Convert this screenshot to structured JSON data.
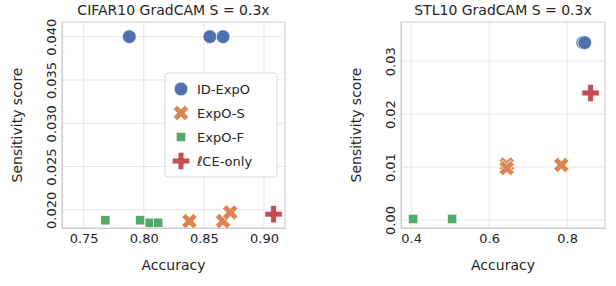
{
  "chart_data": [
    {
      "type": "scatter",
      "title": "CIFAR10 GradCAM S = 0.3x",
      "xlabel": "Accuracy",
      "ylabel": "Sensitivity score",
      "xlim": [
        0.732,
        0.9175
      ],
      "ylim": [
        0.0179,
        0.0417
      ],
      "xticks": [
        0.75,
        {
          "value": 0.8,
          "label": "0.80"
        },
        0.85,
        {
          "value": 0.9,
          "label": "0.90"
        }
      ],
      "yticks": [
        {
          "value": 0.02,
          "label": "0.020"
        },
        0.025,
        {
          "value": 0.03,
          "label": "0.030"
        },
        0.035,
        {
          "value": 0.04,
          "label": "0.040"
        }
      ],
      "grid": true,
      "legend": "center right",
      "series": [
        {
          "name": "ID-ExpO",
          "color": "#4c72b0",
          "marker": "circle",
          "x": [
            0.788,
            0.855,
            0.866
          ],
          "values": [
            0.04,
            0.04,
            0.04
          ]
        },
        {
          "name": "ExpO-S",
          "color": "#dd8452",
          "marker": "x",
          "x": [
            0.838,
            0.866,
            0.872
          ],
          "values": [
            0.0187,
            0.0187,
            0.0197
          ]
        },
        {
          "name": "ExpO-F",
          "color": "#55a868",
          "marker": "square",
          "x": [
            0.768,
            0.797,
            0.805,
            0.812
          ],
          "values": [
            0.0188,
            0.0188,
            0.0185,
            0.0185
          ]
        },
        {
          "name": "ℓCE-only",
          "color": "#c44e52",
          "marker": "plus",
          "x": [
            0.908
          ],
          "values": [
            0.0195
          ]
        }
      ]
    },
    {
      "type": "scatter",
      "title": "STL10 GradCAM S = 0.3x",
      "xlabel": "Accuracy",
      "ylabel": "Sensitivity score",
      "xlim": [
        0.374,
        0.897
      ],
      "ylim": [
        -0.0015,
        0.0374
      ],
      "xticks": [
        0.4,
        0.6,
        0.8
      ],
      "yticks": [
        {
          "value": 0,
          "label": "0.00"
        },
        0.01,
        0.02,
        0.03
      ],
      "grid": true,
      "series": [
        {
          "color": "#4c72b0",
          "marker": "circle",
          "x": [
            0.84,
            0.845
          ],
          "values": [
            0.0335,
            0.0335
          ]
        },
        {
          "color": "#dd8452",
          "marker": "x",
          "x": [
            0.645,
            0.645,
            0.785
          ],
          "values": [
            0.0105,
            0.0098,
            0.0104
          ]
        },
        {
          "color": "#55a868",
          "marker": "square",
          "x": [
            0.405,
            0.505
          ],
          "values": [
            0.0002,
            0.0002
          ]
        },
        {
          "color": "#c44e52",
          "marker": "plus",
          "x": [
            0.86
          ],
          "values": [
            0.024
          ]
        }
      ]
    }
  ]
}
